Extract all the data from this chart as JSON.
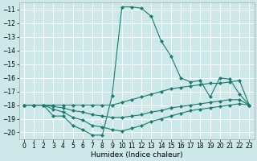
{
  "title": "",
  "xlabel": "Humidex (Indice chaleur)",
  "background_color": "#cce8e8",
  "grid_color": "#ffffff",
  "line_color": "#1a7a6e",
  "xlim": [
    -0.5,
    23.5
  ],
  "ylim": [
    -20.5,
    -10.5
  ],
  "yticks": [
    -20,
    -19,
    -18,
    -17,
    -16,
    -15,
    -14,
    -13,
    -12,
    -11
  ],
  "xticks": [
    0,
    1,
    2,
    3,
    4,
    5,
    6,
    7,
    8,
    9,
    10,
    11,
    12,
    13,
    14,
    15,
    16,
    17,
    18,
    19,
    20,
    21,
    22,
    23
  ],
  "line1_y": [
    -18.0,
    -18.0,
    -18.0,
    -18.8,
    -18.8,
    -19.5,
    -19.8,
    -20.2,
    -20.2,
    -17.3,
    -10.8,
    -10.8,
    -10.9,
    -11.5,
    -13.3,
    -14.4,
    -16.0,
    -16.3,
    -16.2,
    -17.4,
    -16.0,
    -16.1,
    -17.2,
    -18.0
  ],
  "line2_y": [
    -18.0,
    -18.0,
    -18.0,
    -18.0,
    -18.0,
    -18.0,
    -18.0,
    -18.0,
    -18.0,
    -18.0,
    -17.8,
    -17.6,
    -17.4,
    -17.2,
    -17.0,
    -16.8,
    -16.7,
    -16.6,
    -16.5,
    -16.4,
    -16.4,
    -16.3,
    -16.2,
    -18.0
  ],
  "line3_y": [
    -18.0,
    -18.0,
    -18.0,
    -18.1,
    -18.2,
    -18.4,
    -18.5,
    -18.7,
    -18.8,
    -18.9,
    -18.9,
    -18.8,
    -18.7,
    -18.5,
    -18.4,
    -18.2,
    -18.1,
    -18.0,
    -17.9,
    -17.8,
    -17.7,
    -17.6,
    -17.6,
    -18.0
  ],
  "line4_y": [
    -18.0,
    -18.0,
    -18.0,
    -18.3,
    -18.5,
    -18.9,
    -19.1,
    -19.5,
    -19.6,
    -19.8,
    -19.9,
    -19.7,
    -19.5,
    -19.2,
    -19.0,
    -18.8,
    -18.6,
    -18.4,
    -18.3,
    -18.2,
    -18.1,
    -18.0,
    -17.9,
    -18.0
  ],
  "tick_fontsize": 5.5,
  "xlabel_fontsize": 6.5,
  "marker_size": 2.5,
  "line_width": 0.8
}
